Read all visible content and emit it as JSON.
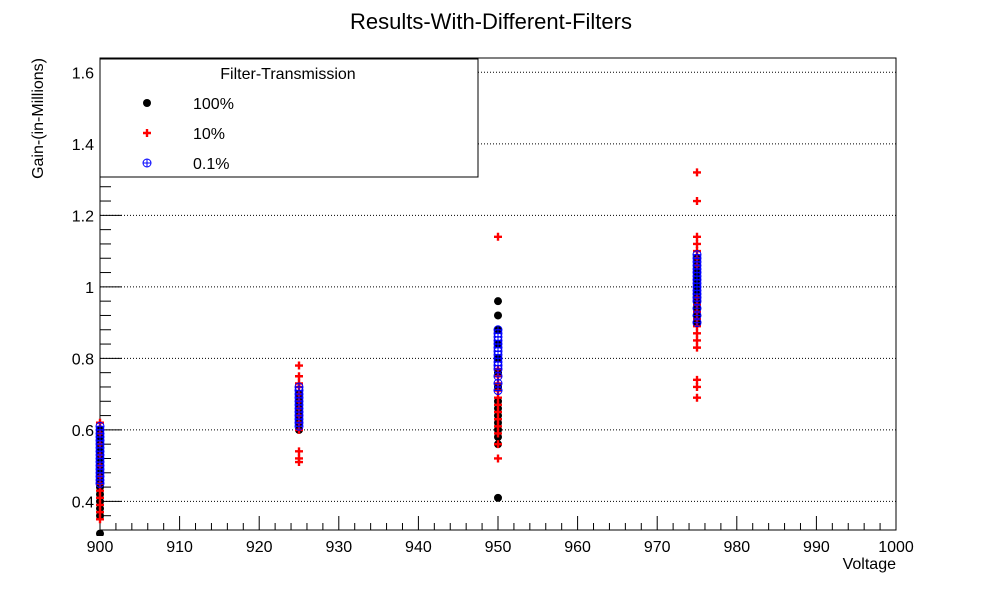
{
  "chart_data": {
    "type": "scatter",
    "title": "Results-With-Different-Filters",
    "xlabel": "Voltage",
    "ylabel": "Gain-(in-Millions)",
    "xlim": [
      900,
      1000
    ],
    "ylim": [
      0.32,
      1.64
    ],
    "x_ticks": [
      {
        "value": 900,
        "label": "900"
      },
      {
        "value": 910,
        "label": "910"
      },
      {
        "value": 920,
        "label": "920"
      },
      {
        "value": 930,
        "label": "930"
      },
      {
        "value": 940,
        "label": "940"
      },
      {
        "value": 950,
        "label": "950"
      },
      {
        "value": 960,
        "label": "960"
      },
      {
        "value": 970,
        "label": "970"
      },
      {
        "value": 980,
        "label": "980"
      },
      {
        "value": 990,
        "label": "990"
      },
      {
        "value": 1000,
        "label": "1000"
      }
    ],
    "y_ticks": [
      {
        "value": 0.4,
        "label": "0.4"
      },
      {
        "value": 0.6,
        "label": "0.6"
      },
      {
        "value": 0.8,
        "label": "0.8"
      },
      {
        "value": 1.0,
        "label": "1"
      },
      {
        "value": 1.2,
        "label": "1.2"
      },
      {
        "value": 1.4,
        "label": "1.4"
      },
      {
        "value": 1.6,
        "label": "1.6"
      }
    ],
    "grid": true,
    "legend": {
      "title": "Filter-Transmission",
      "placement": "top-left"
    },
    "series": [
      {
        "name": "100%",
        "marker": "circle",
        "color": "#000000",
        "points": [
          {
            "x": 900,
            "y": 0.31
          },
          {
            "x": 900,
            "y": 0.36
          },
          {
            "x": 900,
            "y": 0.38
          },
          {
            "x": 900,
            "y": 0.4
          },
          {
            "x": 900,
            "y": 0.42
          },
          {
            "x": 900,
            "y": 0.44
          },
          {
            "x": 900,
            "y": 0.46
          },
          {
            "x": 900,
            "y": 0.48
          },
          {
            "x": 900,
            "y": 0.5
          },
          {
            "x": 900,
            "y": 0.52
          },
          {
            "x": 900,
            "y": 0.54
          },
          {
            "x": 900,
            "y": 0.56
          },
          {
            "x": 900,
            "y": 0.58
          },
          {
            "x": 900,
            "y": 0.6
          },
          {
            "x": 925,
            "y": 0.6
          },
          {
            "x": 925,
            "y": 0.62
          },
          {
            "x": 925,
            "y": 0.64
          },
          {
            "x": 925,
            "y": 0.66
          },
          {
            "x": 925,
            "y": 0.68
          },
          {
            "x": 925,
            "y": 0.7
          },
          {
            "x": 950,
            "y": 0.41
          },
          {
            "x": 950,
            "y": 0.56
          },
          {
            "x": 950,
            "y": 0.58
          },
          {
            "x": 950,
            "y": 0.6
          },
          {
            "x": 950,
            "y": 0.62
          },
          {
            "x": 950,
            "y": 0.64
          },
          {
            "x": 950,
            "y": 0.66
          },
          {
            "x": 950,
            "y": 0.68
          },
          {
            "x": 950,
            "y": 0.72
          },
          {
            "x": 950,
            "y": 0.76
          },
          {
            "x": 950,
            "y": 0.8
          },
          {
            "x": 950,
            "y": 0.84
          },
          {
            "x": 950,
            "y": 0.88
          },
          {
            "x": 950,
            "y": 0.92
          },
          {
            "x": 950,
            "y": 0.96
          },
          {
            "x": 975,
            "y": 0.9
          },
          {
            "x": 975,
            "y": 0.92
          },
          {
            "x": 975,
            "y": 0.94
          },
          {
            "x": 975,
            "y": 0.96
          },
          {
            "x": 975,
            "y": 0.98
          },
          {
            "x": 975,
            "y": 1.0
          },
          {
            "x": 975,
            "y": 1.02
          },
          {
            "x": 975,
            "y": 1.04
          },
          {
            "x": 975,
            "y": 1.06
          },
          {
            "x": 975,
            "y": 1.08
          }
        ]
      },
      {
        "name": "10%",
        "marker": "cross",
        "color": "#ff0000",
        "points": [
          {
            "x": 900,
            "y": 0.35
          },
          {
            "x": 900,
            "y": 0.37
          },
          {
            "x": 900,
            "y": 0.39
          },
          {
            "x": 900,
            "y": 0.41
          },
          {
            "x": 900,
            "y": 0.43
          },
          {
            "x": 900,
            "y": 0.45
          },
          {
            "x": 900,
            "y": 0.47
          },
          {
            "x": 900,
            "y": 0.5
          },
          {
            "x": 900,
            "y": 0.53
          },
          {
            "x": 900,
            "y": 0.56
          },
          {
            "x": 900,
            "y": 0.59
          },
          {
            "x": 900,
            "y": 0.62
          },
          {
            "x": 925,
            "y": 0.51
          },
          {
            "x": 925,
            "y": 0.52
          },
          {
            "x": 925,
            "y": 0.54
          },
          {
            "x": 925,
            "y": 0.6
          },
          {
            "x": 925,
            "y": 0.62
          },
          {
            "x": 925,
            "y": 0.64
          },
          {
            "x": 925,
            "y": 0.66
          },
          {
            "x": 925,
            "y": 0.68
          },
          {
            "x": 925,
            "y": 0.7
          },
          {
            "x": 925,
            "y": 0.72
          },
          {
            "x": 925,
            "y": 0.73
          },
          {
            "x": 925,
            "y": 0.75
          },
          {
            "x": 925,
            "y": 0.78
          },
          {
            "x": 950,
            "y": 0.52
          },
          {
            "x": 950,
            "y": 0.56
          },
          {
            "x": 950,
            "y": 0.59
          },
          {
            "x": 950,
            "y": 0.61
          },
          {
            "x": 950,
            "y": 0.63
          },
          {
            "x": 950,
            "y": 0.65
          },
          {
            "x": 950,
            "y": 0.67
          },
          {
            "x": 950,
            "y": 0.69
          },
          {
            "x": 950,
            "y": 0.71
          },
          {
            "x": 950,
            "y": 0.73
          },
          {
            "x": 950,
            "y": 0.75
          },
          {
            "x": 950,
            "y": 0.77
          },
          {
            "x": 950,
            "y": 1.14
          },
          {
            "x": 975,
            "y": 0.69
          },
          {
            "x": 975,
            "y": 0.72
          },
          {
            "x": 975,
            "y": 0.74
          },
          {
            "x": 975,
            "y": 0.83
          },
          {
            "x": 975,
            "y": 0.85
          },
          {
            "x": 975,
            "y": 0.87
          },
          {
            "x": 975,
            "y": 0.89
          },
          {
            "x": 975,
            "y": 0.91
          },
          {
            "x": 975,
            "y": 0.93
          },
          {
            "x": 975,
            "y": 0.95
          },
          {
            "x": 975,
            "y": 0.97
          },
          {
            "x": 975,
            "y": 1.06
          },
          {
            "x": 975,
            "y": 1.08
          },
          {
            "x": 975,
            "y": 1.1
          },
          {
            "x": 975,
            "y": 1.12
          },
          {
            "x": 975,
            "y": 1.14
          },
          {
            "x": 975,
            "y": 1.24
          },
          {
            "x": 975,
            "y": 1.32
          }
        ]
      },
      {
        "name": "0.1%",
        "marker": "circle-plus",
        "color": "#0000ff",
        "points": [
          {
            "x": 900,
            "y": 0.45
          },
          {
            "x": 900,
            "y": 0.46
          },
          {
            "x": 900,
            "y": 0.47
          },
          {
            "x": 900,
            "y": 0.48
          },
          {
            "x": 900,
            "y": 0.49
          },
          {
            "x": 900,
            "y": 0.5
          },
          {
            "x": 900,
            "y": 0.51
          },
          {
            "x": 900,
            "y": 0.52
          },
          {
            "x": 900,
            "y": 0.53
          },
          {
            "x": 900,
            "y": 0.54
          },
          {
            "x": 900,
            "y": 0.55
          },
          {
            "x": 900,
            "y": 0.56
          },
          {
            "x": 900,
            "y": 0.57
          },
          {
            "x": 900,
            "y": 0.58
          },
          {
            "x": 900,
            "y": 0.59
          },
          {
            "x": 900,
            "y": 0.6
          },
          {
            "x": 900,
            "y": 0.61
          },
          {
            "x": 925,
            "y": 0.61
          },
          {
            "x": 925,
            "y": 0.62
          },
          {
            "x": 925,
            "y": 0.63
          },
          {
            "x": 925,
            "y": 0.64
          },
          {
            "x": 925,
            "y": 0.65
          },
          {
            "x": 925,
            "y": 0.66
          },
          {
            "x": 925,
            "y": 0.67
          },
          {
            "x": 925,
            "y": 0.68
          },
          {
            "x": 925,
            "y": 0.69
          },
          {
            "x": 925,
            "y": 0.7
          },
          {
            "x": 925,
            "y": 0.71
          },
          {
            "x": 925,
            "y": 0.72
          },
          {
            "x": 950,
            "y": 0.71
          },
          {
            "x": 950,
            "y": 0.73
          },
          {
            "x": 950,
            "y": 0.75
          },
          {
            "x": 950,
            "y": 0.77
          },
          {
            "x": 950,
            "y": 0.78
          },
          {
            "x": 950,
            "y": 0.79
          },
          {
            "x": 950,
            "y": 0.8
          },
          {
            "x": 950,
            "y": 0.81
          },
          {
            "x": 950,
            "y": 0.82
          },
          {
            "x": 950,
            "y": 0.83
          },
          {
            "x": 950,
            "y": 0.84
          },
          {
            "x": 950,
            "y": 0.85
          },
          {
            "x": 950,
            "y": 0.86
          },
          {
            "x": 950,
            "y": 0.87
          },
          {
            "x": 950,
            "y": 0.88
          },
          {
            "x": 975,
            "y": 0.9
          },
          {
            "x": 975,
            "y": 0.92
          },
          {
            "x": 975,
            "y": 0.94
          },
          {
            "x": 975,
            "y": 0.96
          },
          {
            "x": 975,
            "y": 0.97
          },
          {
            "x": 975,
            "y": 0.98
          },
          {
            "x": 975,
            "y": 0.99
          },
          {
            "x": 975,
            "y": 1.0
          },
          {
            "x": 975,
            "y": 1.01
          },
          {
            "x": 975,
            "y": 1.02
          },
          {
            "x": 975,
            "y": 1.03
          },
          {
            "x": 975,
            "y": 1.04
          },
          {
            "x": 975,
            "y": 1.05
          },
          {
            "x": 975,
            "y": 1.06
          },
          {
            "x": 975,
            "y": 1.07
          },
          {
            "x": 975,
            "y": 1.08
          },
          {
            "x": 975,
            "y": 1.09
          }
        ]
      }
    ]
  }
}
